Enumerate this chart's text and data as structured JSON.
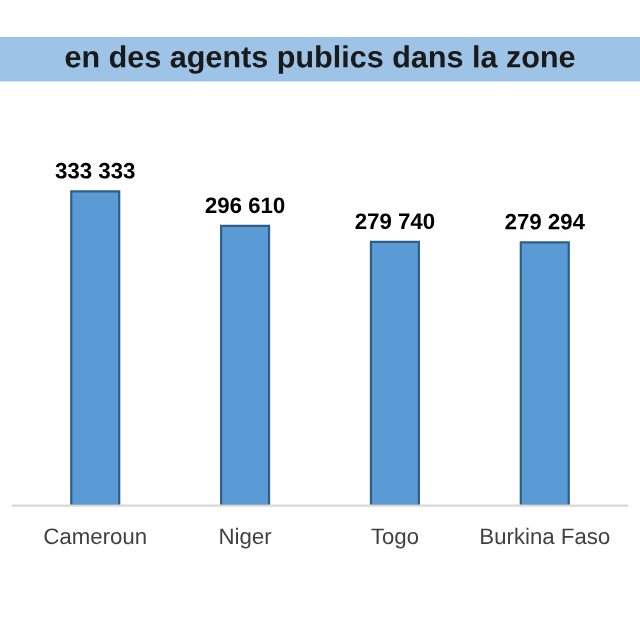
{
  "chart_data": {
    "type": "bar",
    "title": "en des agents publics dans la zone",
    "categories": [
      "Cameroun",
      "Niger",
      "Togo",
      "Burkina Faso"
    ],
    "values": [
      333333,
      296610,
      279740,
      279294
    ],
    "value_labels": [
      "333 333",
      "296 610",
      "279 740",
      "279 294"
    ],
    "color": "#5b9bd5",
    "grid": false,
    "legend": false
  }
}
